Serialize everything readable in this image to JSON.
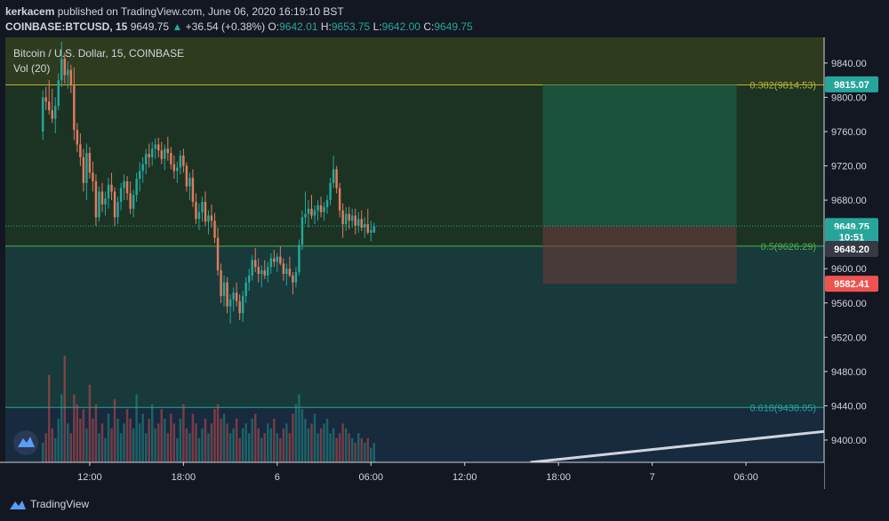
{
  "header": {
    "publisher": "kerkacem",
    "published_text": "published on TradingView.com, June 06, 2020 16:19:10 BST",
    "symbol": "COINBASE:BTCUSD, 15",
    "last": "9649.75",
    "change_arrow": "▲",
    "change": "+36.54 (+0.38%)",
    "o_label": "O:",
    "o_value": "9642.01",
    "h_label": "H:",
    "h_value": "9653.75",
    "l_label": "L:",
    "l_value": "9642.00",
    "c_label": "C:",
    "c_value": "9649.75"
  },
  "legend": {
    "title": "Bitcoin / U.S. Dollar, 15, COINBASE",
    "volume": "Vol (20)"
  },
  "footer": {
    "brand": "TradingView",
    "logo_icon": "tradingview-logo-icon"
  },
  "colors": {
    "up": "#26a69a",
    "down": "#ef5350",
    "background": "#131722",
    "fib_382": "#b2b535",
    "fib_50": "#4caf50",
    "fib_618": "#26a69a"
  },
  "chart_data": {
    "type": "candlestick",
    "title": "Bitcoin / U.S. Dollar, 15, COINBASE",
    "y_axis": {
      "ticks": [
        9840,
        9800,
        9760,
        9720,
        9680,
        9600,
        9560,
        9520,
        9480,
        9440,
        9400
      ],
      "range": [
        9374,
        9870
      ],
      "side": "right"
    },
    "x_axis": {
      "tick_labels": [
        "12:00",
        "18:00",
        "6",
        "06:00",
        "12:00",
        "18:00",
        "7",
        "06:00"
      ],
      "tick_bars": [
        15,
        45,
        75,
        105,
        135,
        165,
        195,
        225
      ],
      "range_bars": [
        -12,
        250
      ]
    },
    "price_labels": [
      {
        "text": "9815.07",
        "value": 9815.07,
        "color": "#26a69a"
      },
      {
        "text": "9649.75",
        "value": 9649.75,
        "color": "#26a69a"
      },
      {
        "text": "10:51",
        "value": 9637,
        "color": "#26a69a"
      },
      {
        "text": "9648.20",
        "value": 9648.2,
        "color": "#363a45",
        "display_value": 9623
      },
      {
        "text": "9582.41",
        "value": 9582.41,
        "color": "#ef5350"
      }
    ],
    "fib_levels": [
      {
        "level": "0.382",
        "price": 9814.53,
        "label": "0.382(9814.53)",
        "color": "#b2b535"
      },
      {
        "level": "0.5",
        "price": 9626.29,
        "label": "0.5(9626.29)",
        "color": "#4caf50"
      },
      {
        "level": "0.618",
        "price": 9438.05,
        "label": "0.618(9438.05)",
        "color": "#26a69a"
      }
    ],
    "position": {
      "entry": 9649.75,
      "target": 9815.07,
      "stop": 9582.41,
      "start_bar": 160,
      "end_bar": 222
    },
    "trendline": {
      "from": [
        156,
        9374
      ],
      "to": [
        250,
        9410
      ]
    },
    "ohlc": [
      [
        9760,
        9808,
        9750,
        9800
      ],
      [
        9800,
        9812,
        9785,
        9795
      ],
      [
        9795,
        9820,
        9780,
        9785
      ],
      [
        9785,
        9810,
        9770,
        9775
      ],
      [
        9775,
        9800,
        9758,
        9790
      ],
      [
        9790,
        9828,
        9785,
        9820
      ],
      [
        9820,
        9865,
        9812,
        9845
      ],
      [
        9845,
        9852,
        9816,
        9826
      ],
      [
        9826,
        9842,
        9810,
        9832
      ],
      [
        9832,
        9838,
        9805,
        9815
      ],
      [
        9815,
        9835,
        9750,
        9762
      ],
      [
        9762,
        9770,
        9736,
        9745
      ],
      [
        9745,
        9758,
        9720,
        9730
      ],
      [
        9730,
        9740,
        9690,
        9700
      ],
      [
        9700,
        9746,
        9680,
        9735
      ],
      [
        9735,
        9742,
        9705,
        9712
      ],
      [
        9712,
        9725,
        9690,
        9702
      ],
      [
        9702,
        9710,
        9650,
        9660
      ],
      [
        9660,
        9696,
        9655,
        9690
      ],
      [
        9690,
        9700,
        9666,
        9675
      ],
      [
        9675,
        9690,
        9662,
        9682
      ],
      [
        9682,
        9706,
        9670,
        9698
      ],
      [
        9698,
        9712,
        9680,
        9690
      ],
      [
        9690,
        9695,
        9650,
        9660
      ],
      [
        9660,
        9684,
        9652,
        9678
      ],
      [
        9678,
        9700,
        9668,
        9694
      ],
      [
        9694,
        9710,
        9680,
        9702
      ],
      [
        9702,
        9708,
        9680,
        9688
      ],
      [
        9688,
        9702,
        9664,
        9670
      ],
      [
        9670,
        9692,
        9660,
        9686
      ],
      [
        9686,
        9712,
        9678,
        9705
      ],
      [
        9705,
        9724,
        9690,
        9714
      ],
      [
        9714,
        9730,
        9700,
        9722
      ],
      [
        9722,
        9740,
        9710,
        9734
      ],
      [
        9734,
        9746,
        9718,
        9730
      ],
      [
        9730,
        9748,
        9720,
        9740
      ],
      [
        9740,
        9752,
        9728,
        9745
      ],
      [
        9745,
        9753,
        9730,
        9738
      ],
      [
        9738,
        9748,
        9722,
        9728
      ],
      [
        9728,
        9745,
        9715,
        9740
      ],
      [
        9740,
        9754,
        9726,
        9735
      ],
      [
        9735,
        9742,
        9716,
        9722
      ],
      [
        9722,
        9732,
        9705,
        9714
      ],
      [
        9714,
        9725,
        9700,
        9718
      ],
      [
        9718,
        9738,
        9710,
        9732
      ],
      [
        9732,
        9740,
        9712,
        9720
      ],
      [
        9720,
        9724,
        9690,
        9696
      ],
      [
        9696,
        9712,
        9680,
        9706
      ],
      [
        9706,
        9716,
        9672,
        9678
      ],
      [
        9678,
        9688,
        9652,
        9658
      ],
      [
        9658,
        9676,
        9645,
        9666
      ],
      [
        9666,
        9684,
        9655,
        9678
      ],
      [
        9678,
        9690,
        9650,
        9655
      ],
      [
        9655,
        9668,
        9640,
        9662
      ],
      [
        9662,
        9675,
        9648,
        9656
      ],
      [
        9656,
        9665,
        9630,
        9636
      ],
      [
        9636,
        9648,
        9592,
        9598
      ],
      [
        9598,
        9606,
        9560,
        9568
      ],
      [
        9568,
        9592,
        9556,
        9584
      ],
      [
        9584,
        9590,
        9548,
        9556
      ],
      [
        9556,
        9570,
        9536,
        9564
      ],
      [
        9564,
        9578,
        9550,
        9572
      ],
      [
        9572,
        9584,
        9556,
        9562
      ],
      [
        9562,
        9570,
        9540,
        9548
      ],
      [
        9548,
        9574,
        9538,
        9568
      ],
      [
        9568,
        9590,
        9560,
        9584
      ],
      [
        9584,
        9600,
        9574,
        9592
      ],
      [
        9592,
        9616,
        9586,
        9610
      ],
      [
        9610,
        9624,
        9596,
        9602
      ],
      [
        9602,
        9612,
        9584,
        9594
      ],
      [
        9594,
        9604,
        9578,
        9598
      ],
      [
        9598,
        9610,
        9588,
        9592
      ],
      [
        9592,
        9608,
        9584,
        9602
      ],
      [
        9602,
        9618,
        9594,
        9612
      ],
      [
        9612,
        9622,
        9602,
        9608
      ],
      [
        9608,
        9618,
        9596,
        9614
      ],
      [
        9614,
        9626,
        9604,
        9606
      ],
      [
        9606,
        9612,
        9586,
        9594
      ],
      [
        9594,
        9606,
        9580,
        9600
      ],
      [
        9600,
        9614,
        9590,
        9592
      ],
      [
        9592,
        9596,
        9570,
        9584
      ],
      [
        9584,
        9602,
        9578,
        9596
      ],
      [
        9596,
        9634,
        9592,
        9628
      ],
      [
        9628,
        9668,
        9622,
        9660
      ],
      [
        9660,
        9690,
        9652,
        9664
      ],
      [
        9664,
        9680,
        9648,
        9670
      ],
      [
        9670,
        9686,
        9658,
        9662
      ],
      [
        9662,
        9674,
        9652,
        9668
      ],
      [
        9668,
        9680,
        9656,
        9674
      ],
      [
        9674,
        9684,
        9660,
        9666
      ],
      [
        9666,
        9678,
        9656,
        9672
      ],
      [
        9672,
        9686,
        9664,
        9680
      ],
      [
        9680,
        9706,
        9674,
        9700
      ],
      [
        9700,
        9732,
        9694,
        9716
      ],
      [
        9716,
        9720,
        9688,
        9694
      ],
      [
        9694,
        9700,
        9660,
        9668
      ],
      [
        9668,
        9676,
        9636,
        9652
      ],
      [
        9652,
        9672,
        9644,
        9664
      ],
      [
        9664,
        9672,
        9646,
        9656
      ],
      [
        9656,
        9670,
        9648,
        9662
      ],
      [
        9662,
        9670,
        9640,
        9650
      ],
      [
        9650,
        9666,
        9642,
        9658
      ],
      [
        9658,
        9668,
        9644,
        9648
      ],
      [
        9648,
        9660,
        9636,
        9652
      ],
      [
        9652,
        9670,
        9640,
        9642
      ],
      [
        9642,
        9656,
        9632,
        9645
      ],
      [
        9642,
        9653.75,
        9642,
        9649.75
      ]
    ],
    "volume": [
      4,
      6,
      18,
      7,
      5,
      9,
      14,
      22,
      8,
      6,
      14,
      12,
      9,
      11,
      7,
      16,
      9,
      12,
      6,
      8,
      5,
      10,
      7,
      13,
      9,
      6,
      8,
      11,
      9,
      7,
      14,
      8,
      10,
      6,
      9,
      12,
      7,
      8,
      11,
      9,
      6,
      10,
      8,
      5,
      9,
      12,
      7,
      6,
      10,
      8,
      5,
      7,
      9,
      6,
      8,
      11,
      12,
      9,
      10,
      8,
      6,
      7,
      9,
      5,
      7,
      8,
      6,
      9,
      10,
      7,
      5,
      6,
      8,
      7,
      9,
      6,
      5,
      7,
      8,
      6,
      10,
      12,
      14,
      11,
      9,
      7,
      8,
      10,
      6,
      7,
      8,
      9,
      6,
      7,
      5,
      6,
      8,
      7,
      6,
      5,
      4,
      6,
      5,
      4,
      5,
      3,
      4
    ]
  }
}
